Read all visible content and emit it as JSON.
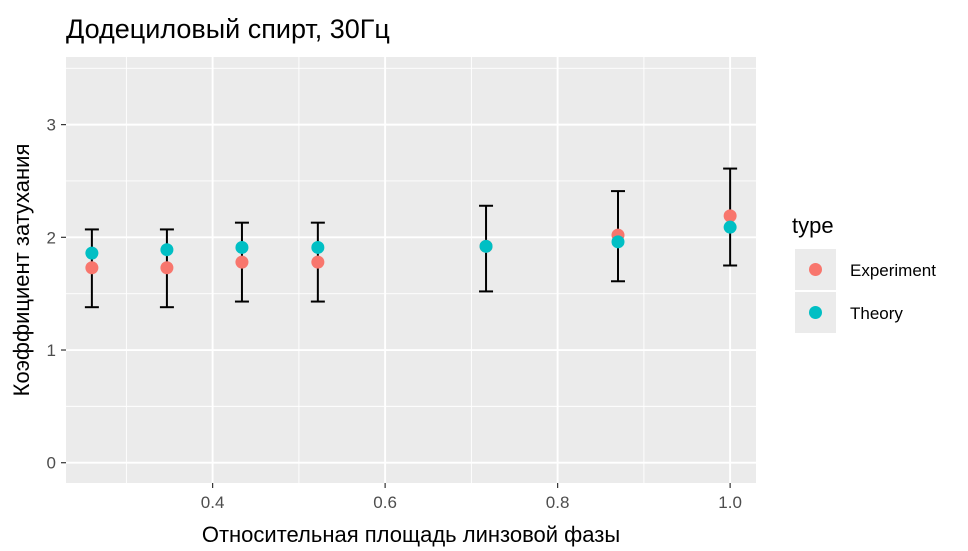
{
  "chart_data": {
    "type": "scatter",
    "title": "Додециловый спирт, 30Гц",
    "xlabel": "Относительная площадь линзовой фазы",
    "ylabel": "Коэффициент затухания",
    "xlim": [
      0.23,
      1.03
    ],
    "ylim": [
      -0.18,
      3.6
    ],
    "x_ticks": [
      "0.4",
      "0.6",
      "0.8",
      "1.0"
    ],
    "y_ticks": [
      "0",
      "1",
      "2",
      "3"
    ],
    "grid": true,
    "legend": {
      "title": "type",
      "position": "right"
    },
    "series": [
      {
        "name": "Experiment",
        "color": "#F8766D",
        "points": [
          {
            "x": 0.26,
            "y": 1.73
          },
          {
            "x": 0.347,
            "y": 1.73
          },
          {
            "x": 0.434,
            "y": 1.78
          },
          {
            "x": 0.522,
            "y": 1.78
          },
          {
            "x": 0.717,
            "y": 1.92
          },
          {
            "x": 0.87,
            "y": 2.02
          },
          {
            "x": 1.0,
            "y": 2.19
          }
        ]
      },
      {
        "name": "Theory",
        "color": "#00BFC4",
        "points": [
          {
            "x": 0.26,
            "y": 1.86
          },
          {
            "x": 0.347,
            "y": 1.89
          },
          {
            "x": 0.434,
            "y": 1.91
          },
          {
            "x": 0.522,
            "y": 1.91
          },
          {
            "x": 0.717,
            "y": 1.92
          },
          {
            "x": 0.87,
            "y": 1.96
          },
          {
            "x": 1.0,
            "y": 2.09
          }
        ]
      }
    ],
    "error_bars": [
      {
        "x": 0.26,
        "low": 1.38,
        "high": 2.07
      },
      {
        "x": 0.347,
        "low": 1.38,
        "high": 2.07
      },
      {
        "x": 0.434,
        "low": 1.43,
        "high": 2.13
      },
      {
        "x": 0.522,
        "low": 1.43,
        "high": 2.13
      },
      {
        "x": 0.717,
        "low": 1.52,
        "high": 2.28
      },
      {
        "x": 0.87,
        "low": 1.61,
        "high": 2.41
      },
      {
        "x": 1.0,
        "low": 1.75,
        "high": 2.61
      }
    ],
    "colors": {
      "panel_bg": "#EBEBEB",
      "grid": "#FFFFFF",
      "error_bar": "#000000"
    }
  }
}
